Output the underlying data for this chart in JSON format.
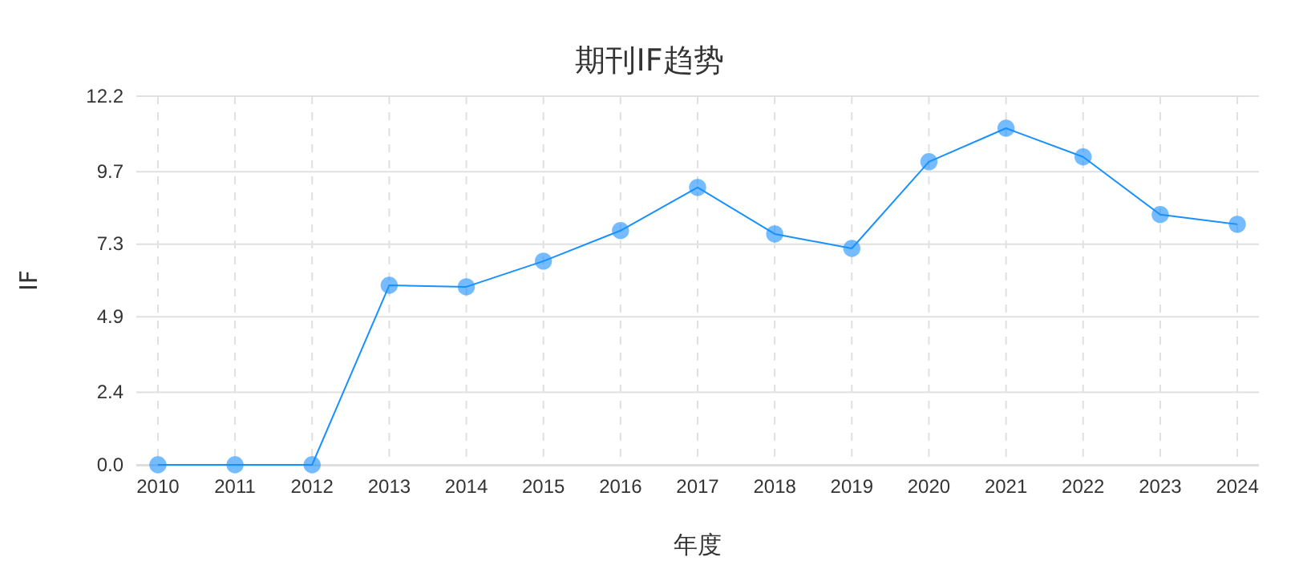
{
  "chart_data": {
    "type": "line",
    "title": "期刊IF趋势",
    "xlabel": "年度",
    "ylabel": "IF",
    "categories": [
      "2010",
      "2011",
      "2012",
      "2013",
      "2014",
      "2015",
      "2016",
      "2017",
      "2018",
      "2019",
      "2020",
      "2021",
      "2022",
      "2023",
      "2024"
    ],
    "series": [
      {
        "color": "#1890ff",
        "values": [
          0,
          0,
          0,
          5.94,
          5.89,
          6.74,
          7.75,
          9.18,
          7.64,
          7.16,
          10.03,
          11.14,
          10.19,
          8.28,
          7.96
        ]
      }
    ],
    "ylim": [
      0,
      12.2
    ],
    "yticks": [
      {
        "value": 0,
        "label": "0.0"
      },
      2.4,
      4.9,
      7.3,
      9.7,
      12.2
    ],
    "grid": true,
    "marker": "circle",
    "line_style": "solid"
  }
}
